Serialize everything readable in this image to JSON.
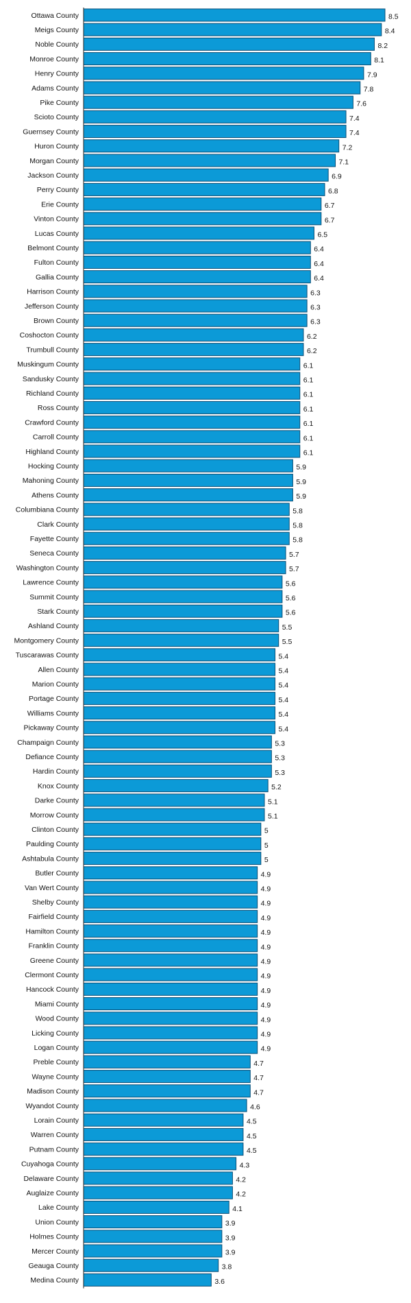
{
  "colors": {
    "bar_fill": "#0c9ad7",
    "bar_stroke": "#0a4d74",
    "axis": "#222222",
    "text": "#111111"
  },
  "chart_data": {
    "type": "bar",
    "orientation": "horizontal",
    "grid": false,
    "legend": "none",
    "xlim": [
      0,
      8.5
    ],
    "categories": [
      "Ottawa County",
      "Meigs County",
      "Noble County",
      "Monroe County",
      "Henry County",
      "Adams County",
      "Pike County",
      "Scioto County",
      "Guernsey County",
      "Huron County",
      "Morgan County",
      "Jackson County",
      "Perry County",
      "Erie County",
      "Vinton County",
      "Lucas County",
      "Belmont County",
      "Fulton County",
      "Gallia County",
      "Harrison County",
      "Jefferson County",
      "Brown County",
      "Coshocton County",
      "Trumbull County",
      "Muskingum County",
      "Sandusky County",
      "Richland County",
      "Ross County",
      "Crawford County",
      "Carroll County",
      "Highland County",
      "Hocking County",
      "Mahoning County",
      "Athens County",
      "Columbiana County",
      "Clark County",
      "Fayette County",
      "Seneca County",
      "Washington County",
      "Lawrence County",
      "Summit County",
      "Stark County",
      "Ashland County",
      "Montgomery County",
      "Tuscarawas County",
      "Allen County",
      "Marion County",
      "Portage County",
      "Williams County",
      "Pickaway County",
      "Champaign County",
      "Defiance County",
      "Hardin County",
      "Knox County",
      "Darke County",
      "Morrow County",
      "Clinton County",
      "Paulding County",
      "Ashtabula County",
      "Butler County",
      "Van Wert County",
      "Shelby County",
      "Fairfield County",
      "Hamilton County",
      "Franklin County",
      "Greene County",
      "Clermont County",
      "Hancock County",
      "Miami County",
      "Wood County",
      "Licking County",
      "Logan County",
      "Preble County",
      "Wayne County",
      "Madison County",
      "Wyandot County",
      "Lorain County",
      "Warren County",
      "Putnam County",
      "Cuyahoga County",
      "Delaware County",
      "Auglaize County",
      "Lake County",
      "Union County",
      "Holmes County",
      "Mercer County",
      "Geauga County",
      "Medina County"
    ],
    "values": [
      8.5,
      8.4,
      8.2,
      8.1,
      7.9,
      7.8,
      7.6,
      7.4,
      7.4,
      7.2,
      7.1,
      6.9,
      6.8,
      6.7,
      6.7,
      6.5,
      6.4,
      6.4,
      6.4,
      6.3,
      6.3,
      6.3,
      6.2,
      6.2,
      6.1,
      6.1,
      6.1,
      6.1,
      6.1,
      6.1,
      6.1,
      5.9,
      5.9,
      5.9,
      5.8,
      5.8,
      5.8,
      5.7,
      5.7,
      5.6,
      5.6,
      5.6,
      5.5,
      5.5,
      5.4,
      5.4,
      5.4,
      5.4,
      5.4,
      5.4,
      5.3,
      5.3,
      5.3,
      5.2,
      5.1,
      5.1,
      5,
      5,
      5,
      4.9,
      4.9,
      4.9,
      4.9,
      4.9,
      4.9,
      4.9,
      4.9,
      4.9,
      4.9,
      4.9,
      4.9,
      4.9,
      4.7,
      4.7,
      4.7,
      4.6,
      4.5,
      4.5,
      4.5,
      4.3,
      4.2,
      4.2,
      4.1,
      3.9,
      3.9,
      3.9,
      3.8,
      3.6
    ]
  }
}
